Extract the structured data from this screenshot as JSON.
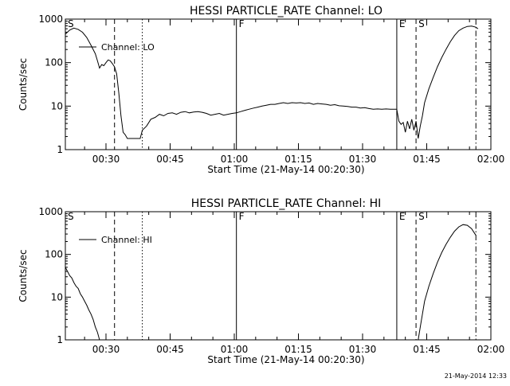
{
  "footer": {
    "timestamp": "21-May-2014 12:33"
  },
  "colors": {
    "foreground": "#000000",
    "background": "#ffffff"
  },
  "chart_data": [
    {
      "type": "line",
      "title": "HESSI PARTICLE_RATE Channel: LO",
      "xlabel": "Start Time (21-May-14 00:20:30)",
      "ylabel": "Counts/sec",
      "y_scale": "log",
      "xlim": [
        "00:20:30",
        "02:00:00"
      ],
      "ylim": [
        1,
        1000
      ],
      "x_ticks": [
        "00:30",
        "00:45",
        "01:00",
        "01:15",
        "01:30",
        "01:45",
        "02:00"
      ],
      "y_ticks": [
        "1",
        "10",
        "100",
        "1000"
      ],
      "legend": {
        "label": "Channel: LO",
        "position": "top-left"
      },
      "series": [
        {
          "name": "Channel: LO",
          "points": [
            [
              "00:20:30",
              450
            ],
            [
              "00:21:30",
              560
            ],
            [
              "00:22:30",
              620
            ],
            [
              "00:23:30",
              580
            ],
            [
              "00:24:30",
              500
            ],
            [
              "00:25:30",
              380
            ],
            [
              "00:26:30",
              250
            ],
            [
              "00:27:30",
              160
            ],
            [
              "00:28:00",
              110
            ],
            [
              "00:28:30",
              75
            ],
            [
              "00:29:00",
              90
            ],
            [
              "00:29:30",
              85
            ],
            [
              "00:30:00",
              100
            ],
            [
              "00:30:30",
              115
            ],
            [
              "00:31:00",
              110
            ],
            [
              "00:31:30",
              95
            ],
            [
              "00:32:00",
              80
            ],
            [
              "00:32:30",
              55
            ],
            [
              "00:33:00",
              20
            ],
            [
              "00:33:30",
              6
            ],
            [
              "00:34:00",
              2.5
            ],
            [
              "00:34:30",
              2.2
            ],
            [
              "00:35:00",
              1.8
            ],
            [
              "00:38:00",
              1.8
            ],
            [
              "00:38:30",
              2.8
            ],
            [
              "00:39:30",
              3.5
            ],
            [
              "00:40:30",
              5
            ],
            [
              "00:41:30",
              5.5
            ],
            [
              "00:42:30",
              6.5
            ],
            [
              "00:43:30",
              6
            ],
            [
              "00:44:30",
              6.8
            ],
            [
              "00:45:30",
              7
            ],
            [
              "00:46:30",
              6.5
            ],
            [
              "00:47:30",
              7.2
            ],
            [
              "00:48:30",
              7.5
            ],
            [
              "00:49:30",
              7
            ],
            [
              "00:50:30",
              7.3
            ],
            [
              "00:51:30",
              7.5
            ],
            [
              "00:52:30",
              7.2
            ],
            [
              "00:53:30",
              6.8
            ],
            [
              "00:54:30",
              6.2
            ],
            [
              "00:55:30",
              6.5
            ],
            [
              "00:56:30",
              6.8
            ],
            [
              "00:57:30",
              6.2
            ],
            [
              "00:58:30",
              6.5
            ],
            [
              "00:59:30",
              6.8
            ],
            [
              "01:00:30",
              7
            ],
            [
              "01:01:30",
              7.5
            ],
            [
              "01:02:30",
              8
            ],
            [
              "01:03:30",
              8.5
            ],
            [
              "01:04:30",
              9
            ],
            [
              "01:05:30",
              9.5
            ],
            [
              "01:06:30",
              10
            ],
            [
              "01:07:30",
              10.5
            ],
            [
              "01:08:30",
              11
            ],
            [
              "01:09:30",
              11
            ],
            [
              "01:10:30",
              11.5
            ],
            [
              "01:11:30",
              12
            ],
            [
              "01:12:30",
              11.5
            ],
            [
              "01:13:30",
              12
            ],
            [
              "01:14:30",
              11.8
            ],
            [
              "01:15:30",
              12
            ],
            [
              "01:16:30",
              11.5
            ],
            [
              "01:17:30",
              11.8
            ],
            [
              "01:18:30",
              11
            ],
            [
              "01:19:30",
              11.5
            ],
            [
              "01:20:30",
              11.2
            ],
            [
              "01:21:30",
              11
            ],
            [
              "01:22:30",
              10.5
            ],
            [
              "01:23:30",
              10.8
            ],
            [
              "01:24:30",
              10.2
            ],
            [
              "01:25:30",
              10
            ],
            [
              "01:26:30",
              9.8
            ],
            [
              "01:27:30",
              9.5
            ],
            [
              "01:28:30",
              9.5
            ],
            [
              "01:29:30",
              9
            ],
            [
              "01:30:30",
              9.2
            ],
            [
              "01:31:30",
              8.8
            ],
            [
              "01:32:30",
              8.5
            ],
            [
              "01:33:30",
              8.6
            ],
            [
              "01:34:30",
              8.5
            ],
            [
              "01:35:30",
              8.6
            ],
            [
              "01:36:30",
              8.5
            ],
            [
              "01:37:30",
              8.5
            ],
            [
              "01:38:00",
              8.5
            ],
            [
              "01:38:30",
              4.5
            ],
            [
              "01:39:00",
              3.8
            ],
            [
              "01:39:30",
              4.2
            ],
            [
              "01:40:00",
              2.5
            ],
            [
              "01:40:30",
              4.5
            ],
            [
              "01:41:00",
              3
            ],
            [
              "01:41:30",
              5
            ],
            [
              "01:42:00",
              2.8
            ],
            [
              "01:42:30",
              4.5
            ],
            [
              "01:43:00",
              1.8
            ],
            [
              "01:43:30",
              3.5
            ],
            [
              "01:44:00",
              6
            ],
            [
              "01:44:30",
              12
            ],
            [
              "01:45:30",
              25
            ],
            [
              "01:46:30",
              45
            ],
            [
              "01:47:30",
              80
            ],
            [
              "01:48:30",
              130
            ],
            [
              "01:49:30",
              200
            ],
            [
              "01:50:30",
              300
            ],
            [
              "01:51:30",
              420
            ],
            [
              "01:52:30",
              540
            ],
            [
              "01:53:30",
              620
            ],
            [
              "01:54:30",
              680
            ],
            [
              "01:55:30",
              690
            ],
            [
              "01:56:30",
              650
            ],
            [
              "01:57:00",
              600
            ]
          ]
        }
      ],
      "markers": [
        {
          "label": "S",
          "time": "00:20:30",
          "style": "none"
        },
        {
          "label": "",
          "time": "00:32:00",
          "style": "dashed"
        },
        {
          "label": "",
          "time": "00:38:30",
          "style": "dotted"
        },
        {
          "label": "F",
          "time": "01:00:30",
          "style": "solid"
        },
        {
          "label": "E",
          "time": "01:38:00",
          "style": "solid"
        },
        {
          "label": "S",
          "time": "01:42:30",
          "style": "dashed"
        },
        {
          "label": "",
          "time": "01:56:30",
          "style": "dashdot"
        }
      ]
    },
    {
      "type": "line",
      "title": "HESSI PARTICLE_RATE Channel: HI",
      "xlabel": "Start Time (21-May-14 00:20:30)",
      "ylabel": "Counts/sec",
      "y_scale": "log",
      "xlim": [
        "00:20:30",
        "02:00:00"
      ],
      "ylim": [
        1,
        1000
      ],
      "x_ticks": [
        "00:30",
        "00:45",
        "01:00",
        "01:15",
        "01:30",
        "01:45",
        "02:00"
      ],
      "y_ticks": [
        "1",
        "10",
        "100",
        "1000"
      ],
      "legend": {
        "label": "Channel: HI",
        "position": "top-left"
      },
      "series": [
        {
          "name": "Channel: HI",
          "segments": [
            [
              [
                "00:20:30",
                50
              ],
              [
                "00:21:00",
                40
              ],
              [
                "00:21:30",
                32
              ],
              [
                "00:22:00",
                28
              ],
              [
                "00:22:30",
                22
              ],
              [
                "00:23:00",
                18
              ],
              [
                "00:23:30",
                16
              ],
              [
                "00:24:00",
                12
              ],
              [
                "00:24:30",
                10
              ],
              [
                "00:25:00",
                8
              ],
              [
                "00:25:30",
                6.5
              ],
              [
                "00:26:00",
                5
              ],
              [
                "00:26:30",
                4
              ],
              [
                "00:27:00",
                3
              ],
              [
                "00:27:30",
                2
              ],
              [
                "00:28:00",
                1.5
              ],
              [
                "00:28:30",
                1
              ]
            ],
            [
              [
                "01:43:00",
                1
              ],
              [
                "01:43:30",
                2
              ],
              [
                "01:44:00",
                4
              ],
              [
                "01:44:30",
                8
              ],
              [
                "01:45:30",
                18
              ],
              [
                "01:46:30",
                35
              ],
              [
                "01:47:30",
                65
              ],
              [
                "01:48:30",
                110
              ],
              [
                "01:49:30",
                170
              ],
              [
                "01:50:30",
                250
              ],
              [
                "01:51:30",
                350
              ],
              [
                "01:52:30",
                440
              ],
              [
                "01:53:30",
                500
              ],
              [
                "01:54:30",
                480
              ],
              [
                "01:55:30",
                400
              ],
              [
                "01:56:30",
                280
              ]
            ]
          ]
        }
      ],
      "markers": [
        {
          "label": "S",
          "time": "00:20:30",
          "style": "none"
        },
        {
          "label": "",
          "time": "00:32:00",
          "style": "dashed"
        },
        {
          "label": "",
          "time": "00:38:30",
          "style": "dotted"
        },
        {
          "label": "F",
          "time": "01:00:30",
          "style": "solid"
        },
        {
          "label": "E",
          "time": "01:38:00",
          "style": "solid"
        },
        {
          "label": "S",
          "time": "01:42:30",
          "style": "dashed"
        },
        {
          "label": "",
          "time": "01:56:30",
          "style": "dashdot"
        }
      ]
    }
  ]
}
